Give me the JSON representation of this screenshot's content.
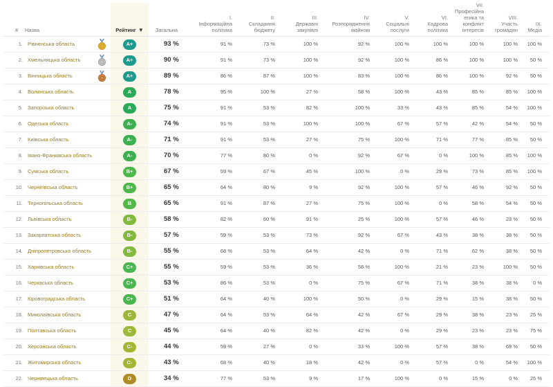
{
  "header": {
    "num": "#",
    "name": "Назва",
    "rating": "Рейтинг",
    "sort_icon": "▼",
    "total": "Загальна",
    "indicators": [
      [
        "I.",
        "Інформаційна",
        "політика"
      ],
      [
        "II.",
        "Складання",
        "бюджету"
      ],
      [
        "III.",
        "Державні",
        "закупівлі"
      ],
      [
        "IV.",
        "Розпорядження",
        "майном"
      ],
      [
        "V.",
        "Соціальні",
        "послуги"
      ],
      [
        "VI.",
        "Кадрова",
        "політика"
      ],
      [
        "VII.",
        "Професійна",
        "етика та",
        "конфлікт",
        "інтересів"
      ],
      [
        "VIII.",
        "Участь",
        "громадян"
      ],
      [
        "IX.",
        "Медіа"
      ]
    ]
  },
  "colors": {
    "A+": "#1d9a8c",
    "A": "#2aa956",
    "A-": "#3cb04f",
    "B+": "#4db84a",
    "B": "#52b848",
    "B-": "#82ba3f",
    "C+": "#49b650",
    "C": "#9bb83a",
    "C-": "#a3b634",
    "D": "#b08c26",
    "name": "#9a7b1c",
    "rating_bg": "#fbf7ea"
  },
  "rows": [
    {
      "num": "1.",
      "name": "Рівненська область",
      "medal": "gold",
      "rating": "A+",
      "total": "93 %",
      "vals": [
        "91 %",
        "73 %",
        "100 %",
        "92 %",
        "100 %",
        "100 %",
        "100 %",
        "100 %",
        "100 %"
      ]
    },
    {
      "num": "2.",
      "name": "Хмельницька область",
      "medal": "silver",
      "rating": "A+",
      "total": "90 %",
      "vals": [
        "91 %",
        "73 %",
        "100 %",
        "92 %",
        "100 %",
        "86 %",
        "100 %",
        "100 %",
        "50 %"
      ]
    },
    {
      "num": "3.",
      "name": "Вінницька область",
      "medal": "bronze",
      "rating": "A+",
      "total": "89 %",
      "vals": [
        "86 %",
        "87 %",
        "100 %",
        "83 %",
        "100 %",
        "86 %",
        "100 %",
        "92 %",
        "50 %"
      ]
    },
    {
      "num": "4.",
      "name": "Волинська область",
      "medal": "",
      "rating": "A",
      "total": "78 %",
      "vals": [
        "95 %",
        "100 %",
        "27 %",
        "58 %",
        "100 %",
        "43 %",
        "85 %",
        "85 %",
        "100 %"
      ]
    },
    {
      "num": "5.",
      "name": "Запорізька область",
      "medal": "",
      "rating": "A",
      "total": "75 %",
      "vals": [
        "91 %",
        "53 %",
        "82 %",
        "100 %",
        "33 %",
        "43 %",
        "85 %",
        "54 %",
        "100 %"
      ]
    },
    {
      "num": "6.",
      "name": "Одеська область",
      "medal": "",
      "rating": "A-",
      "total": "74 %",
      "vals": [
        "91 %",
        "53 %",
        "100 %",
        "100 %",
        "67 %",
        "57 %",
        "42 %",
        "54 %",
        "50 %"
      ]
    },
    {
      "num": "7.",
      "name": "Київська область",
      "medal": "",
      "rating": "A-",
      "total": "71 %",
      "vals": [
        "91 %",
        "53 %",
        "27 %",
        "75 %",
        "100 %",
        "71 %",
        "77 %",
        "85 %",
        "50 %"
      ]
    },
    {
      "num": "8.",
      "name": "Івано-Франківська область",
      "medal": "",
      "rating": "A-",
      "total": "70 %",
      "vals": [
        "77 %",
        "80 %",
        "0 %",
        "92 %",
        "67 %",
        "0 %",
        "100 %",
        "85 %",
        "100 %"
      ]
    },
    {
      "num": "9.",
      "name": "Сумська область",
      "medal": "",
      "rating": "B+",
      "total": "67 %",
      "vals": [
        "59 %",
        "67 %",
        "45 %",
        "100 %",
        "0 %",
        "29 %",
        "73 %",
        "85 %",
        "100 %"
      ]
    },
    {
      "num": "10.",
      "name": "Чернігівська область",
      "medal": "",
      "rating": "B+",
      "total": "65 %",
      "vals": [
        "64 %",
        "80 %",
        "9 %",
        "92 %",
        "100 %",
        "57 %",
        "46 %",
        "92 %",
        "50 %"
      ]
    },
    {
      "num": "11.",
      "name": "Тернопільська область",
      "medal": "",
      "rating": "B",
      "total": "65 %",
      "vals": [
        "91 %",
        "87 %",
        "27 %",
        "75 %",
        "100 %",
        "0 %",
        "58 %",
        "54 %",
        "50 %"
      ]
    },
    {
      "num": "12.",
      "name": "Львівська область",
      "medal": "",
      "rating": "B-",
      "total": "58 %",
      "vals": [
        "82 %",
        "60 %",
        "91 %",
        "25 %",
        "100 %",
        "57 %",
        "46 %",
        "23 %",
        "50 %"
      ]
    },
    {
      "num": "13.",
      "name": "Закарпатська область",
      "medal": "",
      "rating": "B-",
      "total": "57 %",
      "vals": [
        "59 %",
        "53 %",
        "73 %",
        "92 %",
        "67 %",
        "43 %",
        "38 %",
        "38 %",
        "50 %"
      ]
    },
    {
      "num": "14.",
      "name": "Дніпропетровська область",
      "medal": "",
      "rating": "B-",
      "total": "55 %",
      "vals": [
        "68 %",
        "53 %",
        "64 %",
        "42 %",
        "0 %",
        "71 %",
        "62 %",
        "38 %",
        "50 %"
      ]
    },
    {
      "num": "15.",
      "name": "Харківська область",
      "medal": "",
      "rating": "C+",
      "total": "55 %",
      "vals": [
        "59 %",
        "53 %",
        "36 %",
        "58 %",
        "100 %",
        "21 %",
        "23 %",
        "100 %",
        "50 %"
      ]
    },
    {
      "num": "16.",
      "name": "Черкаська область",
      "medal": "",
      "rating": "C+",
      "total": "53 %",
      "vals": [
        "86 %",
        "53 %",
        "0 %",
        "75 %",
        "67 %",
        "71 %",
        "38 %",
        "38 %",
        "0 %"
      ]
    },
    {
      "num": "17.",
      "name": "Кіровоградська область",
      "medal": "",
      "rating": "C+",
      "total": "51 %",
      "vals": [
        "64 %",
        "40 %",
        "100 %",
        "50 %",
        "0 %",
        "29 %",
        "15 %",
        "38 %",
        "50 %"
      ]
    },
    {
      "num": "18.",
      "name": "Миколаївська область",
      "medal": "",
      "rating": "C",
      "total": "47 %",
      "vals": [
        "64 %",
        "53 %",
        "64 %",
        "42 %",
        "67 %",
        "29 %",
        "38 %",
        "23 %",
        "25 %"
      ]
    },
    {
      "num": "19.",
      "name": "Полтавська область",
      "medal": "",
      "rating": "C",
      "total": "45 %",
      "vals": [
        "64 %",
        "40 %",
        "82 %",
        "42 %",
        "0 %",
        "29 %",
        "23 %",
        "23 %",
        "75 %"
      ]
    },
    {
      "num": "20.",
      "name": "Херсонська область",
      "medal": "",
      "rating": "C-",
      "total": "44 %",
      "vals": [
        "59 %",
        "27 %",
        "0 %",
        "33 %",
        "100 %",
        "57 %",
        "38 %",
        "69 %",
        "50 %"
      ]
    },
    {
      "num": "21.",
      "name": "Житомирська область",
      "medal": "",
      "rating": "C-",
      "total": "43 %",
      "vals": [
        "68 %",
        "40 %",
        "18 %",
        "42 %",
        "0 %",
        "57 %",
        "0 %",
        "54 %",
        "100 %"
      ]
    },
    {
      "num": "22.",
      "name": "Чернівецька область",
      "medal": "",
      "rating": "D",
      "total": "34 %",
      "vals": [
        "77 %",
        "53 %",
        "9 %",
        "17 %",
        "100 %",
        "0 %",
        "15 %",
        "0 %",
        "25 %"
      ]
    }
  ]
}
